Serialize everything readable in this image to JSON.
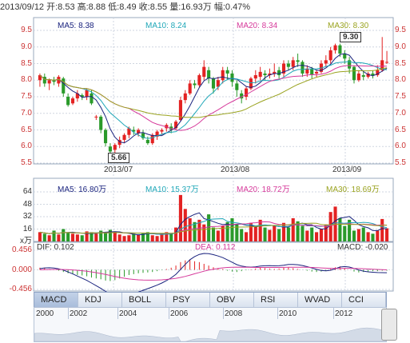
{
  "header": {
    "info": "2013/09/12 开:8.53  高:8.88  低:8.49  收:8.55  量:16.93万  幅:0.47%"
  },
  "price_panel": {
    "ma": [
      {
        "label": "MA5: 8.38",
        "color": "#1a237e"
      },
      {
        "label": "MA10: 8.24",
        "color": "#1fa7b8"
      },
      {
        "label": "MA20: 8.34",
        "color": "#d63a9b"
      },
      {
        "label": "MA30: 8.30",
        "color": "#9aa320"
      }
    ],
    "y_ticks": [
      "9.5",
      "9.0",
      "8.5",
      "8.0",
      "7.5",
      "7.0",
      "6.5",
      "6.0",
      "5.5"
    ],
    "x_ticks": [
      "2013/07",
      "2013/08",
      "2013/09"
    ],
    "high_marker": "9.30",
    "low_marker": "5.66"
  },
  "volume_panel": {
    "ma": [
      {
        "label": "MA5: 16.80万",
        "color": "#1a237e"
      },
      {
        "label": "MA10: 15.37万",
        "color": "#1fa7b8"
      },
      {
        "label": "MA20: 18.72万",
        "color": "#d63a9b"
      },
      {
        "label": "MA30: 18.69万",
        "color": "#9aa320"
      }
    ],
    "y_ticks": [
      "64",
      "48",
      "32",
      "16",
      "x万"
    ]
  },
  "macd_panel": {
    "dif": "DIF: 0.102",
    "dea": "DEA: 0.112",
    "macd": "MACD: -0.020",
    "y_ticks": [
      "0.456",
      "0.000",
      "-0.456"
    ]
  },
  "tabs": [
    "MACD",
    "KDJ",
    "BOLL",
    "PSY",
    "OBV",
    "RSI",
    "WVAD",
    "CCI"
  ],
  "active_tab": "MACD",
  "timeline_years": [
    "2000",
    "2002",
    "2004",
    "2006",
    "2008",
    "2010",
    "2012"
  ],
  "colors": {
    "up": "#e32222",
    "down": "#2a9a2a",
    "grid": "#cfd6e0"
  },
  "chart_data": [
    {
      "type": "candlestick",
      "title": "2013/09/12 开:8.53  高:8.88  低:8.49  收:8.55  量:16.93万  幅:0.47%",
      "x_ticks": [
        "2013/07",
        "2013/08",
        "2013/09"
      ],
      "ylim": [
        5.5,
        9.5
      ],
      "candles": [
        [
          8.0,
          8.15,
          7.8,
          8.2
        ],
        [
          8.1,
          7.9,
          7.8,
          8.2
        ],
        [
          7.9,
          8.0,
          7.7,
          8.05
        ],
        [
          8.0,
          7.95,
          7.85,
          8.1
        ],
        [
          7.9,
          8.1,
          7.8,
          8.15
        ],
        [
          8.05,
          7.6,
          7.5,
          8.1
        ],
        [
          7.5,
          7.25,
          7.2,
          7.6
        ],
        [
          7.3,
          7.45,
          7.25,
          7.5
        ],
        [
          7.45,
          7.6,
          7.35,
          7.7
        ],
        [
          7.55,
          7.5,
          7.4,
          7.6
        ],
        [
          7.5,
          7.7,
          7.4,
          7.75
        ],
        [
          7.6,
          7.3,
          7.25,
          7.7
        ],
        [
          6.9,
          6.9,
          6.8,
          6.95
        ],
        [
          6.9,
          6.5,
          6.4,
          6.95
        ],
        [
          6.5,
          6.1,
          6.0,
          6.55
        ],
        [
          6.0,
          5.85,
          5.66,
          6.1
        ],
        [
          5.9,
          6.05,
          5.8,
          6.1
        ],
        [
          6.05,
          6.2,
          5.95,
          6.3
        ],
        [
          6.2,
          6.35,
          6.1,
          6.4
        ],
        [
          6.35,
          6.55,
          6.25,
          6.6
        ],
        [
          6.5,
          6.45,
          6.35,
          6.6
        ],
        [
          6.4,
          6.5,
          6.3,
          6.55
        ],
        [
          6.4,
          6.25,
          6.2,
          6.5
        ],
        [
          6.2,
          6.1,
          6.05,
          6.3
        ],
        [
          6.1,
          6.35,
          6.05,
          6.4
        ],
        [
          6.3,
          6.45,
          6.2,
          6.5
        ],
        [
          6.45,
          6.5,
          6.35,
          6.55
        ],
        [
          6.55,
          6.65,
          6.45,
          6.7
        ],
        [
          6.6,
          6.5,
          6.4,
          6.7
        ],
        [
          6.55,
          6.75,
          6.5,
          6.8
        ],
        [
          6.8,
          7.4,
          6.75,
          7.5
        ],
        [
          7.4,
          7.6,
          7.3,
          7.7
        ],
        [
          7.6,
          7.9,
          7.55,
          8.0
        ],
        [
          7.9,
          7.85,
          7.75,
          8.0
        ],
        [
          7.85,
          8.15,
          7.8,
          8.2
        ],
        [
          8.1,
          8.4,
          8.0,
          8.6
        ],
        [
          8.3,
          8.05,
          7.9,
          8.4
        ],
        [
          8.05,
          7.75,
          7.6,
          8.1
        ],
        [
          7.8,
          8.0,
          7.7,
          8.1
        ],
        [
          8.0,
          8.3,
          7.9,
          8.4
        ],
        [
          8.3,
          8.2,
          8.0,
          8.4
        ],
        [
          8.2,
          7.95,
          7.8,
          8.3
        ],
        [
          7.9,
          7.7,
          7.5,
          8.0
        ],
        [
          7.6,
          7.45,
          7.3,
          7.7
        ],
        [
          7.5,
          7.75,
          7.4,
          7.8
        ],
        [
          7.75,
          8.05,
          7.7,
          8.1
        ],
        [
          8.05,
          8.15,
          7.9,
          8.3
        ],
        [
          8.1,
          8.25,
          8.0,
          8.4
        ],
        [
          8.2,
          8.15,
          8.0,
          8.3
        ],
        [
          8.15,
          8.2,
          8.05,
          8.35
        ],
        [
          8.2,
          8.25,
          8.1,
          8.5
        ],
        [
          8.3,
          8.15,
          8.05,
          8.4
        ],
        [
          8.2,
          8.5,
          8.1,
          8.6
        ],
        [
          8.5,
          8.4,
          8.3,
          8.6
        ],
        [
          8.4,
          8.6,
          8.3,
          8.7
        ],
        [
          8.6,
          8.55,
          8.4,
          8.8
        ],
        [
          8.55,
          8.2,
          8.1,
          8.6
        ],
        [
          8.2,
          8.35,
          8.1,
          8.45
        ],
        [
          8.35,
          8.15,
          8.05,
          8.4
        ],
        [
          8.2,
          8.25,
          8.1,
          8.3
        ],
        [
          8.25,
          8.5,
          8.2,
          8.6
        ],
        [
          8.5,
          8.6,
          8.4,
          8.75
        ],
        [
          8.6,
          8.9,
          8.5,
          9.0
        ],
        [
          8.9,
          9.05,
          8.8,
          9.1
        ],
        [
          9.05,
          8.8,
          8.7,
          9.1
        ],
        [
          8.8,
          8.65,
          8.5,
          8.9
        ],
        [
          8.6,
          8.35,
          8.2,
          8.7
        ],
        [
          8.4,
          8.0,
          7.9,
          8.45
        ],
        [
          8.0,
          8.2,
          7.95,
          8.3
        ],
        [
          8.15,
          8.1,
          8.0,
          8.3
        ],
        [
          8.1,
          8.2,
          8.05,
          8.25
        ],
        [
          8.2,
          8.15,
          8.05,
          8.3
        ],
        [
          8.15,
          8.3,
          8.1,
          8.45
        ],
        [
          8.3,
          8.6,
          8.25,
          9.3
        ],
        [
          8.53,
          8.55,
          8.49,
          8.88
        ]
      ]
    },
    {
      "type": "bar",
      "title": "volume",
      "ylim": [
        0,
        64
      ],
      "values": [
        12,
        10,
        8,
        14,
        9,
        16,
        11,
        10,
        9,
        8,
        13,
        12,
        10,
        14,
        11,
        15,
        13,
        9,
        7,
        8,
        10,
        9,
        11,
        12,
        8,
        7,
        10,
        12,
        11,
        18,
        60,
        42,
        30,
        25,
        28,
        22,
        35,
        18,
        14,
        20,
        25,
        30,
        22,
        16,
        12,
        24,
        20,
        28,
        18,
        15,
        20,
        16,
        24,
        18,
        30,
        26,
        20,
        14,
        18,
        12,
        16,
        22,
        38,
        45,
        30,
        20,
        28,
        14,
        16,
        18,
        12,
        10,
        14,
        29,
        17
      ]
    },
    {
      "type": "bar",
      "title": "MACD",
      "ylim": [
        -0.456,
        0.456
      ],
      "values": [
        0.05,
        0.04,
        0.02,
        0.0,
        -0.02,
        -0.05,
        -0.08,
        -0.1,
        -0.12,
        -0.13,
        -0.15,
        -0.18,
        -0.2,
        -0.22,
        -0.25,
        -0.26,
        -0.24,
        -0.2,
        -0.16,
        -0.12,
        -0.1,
        -0.08,
        -0.07,
        -0.06,
        -0.05,
        -0.03,
        -0.01,
        0.02,
        0.05,
        0.1,
        0.18,
        0.22,
        0.24,
        0.2,
        0.18,
        0.14,
        0.1,
        0.06,
        0.04,
        0.02,
        -0.02,
        -0.04,
        -0.05,
        -0.03,
        -0.01,
        0.01,
        0.03,
        0.05,
        0.04,
        0.03,
        0.02,
        0.03,
        0.05,
        0.06,
        0.04,
        0.02,
        0.0,
        -0.02,
        -0.04,
        -0.05,
        -0.04,
        -0.02,
        0.02,
        0.06,
        0.08,
        0.04,
        0.0,
        -0.04,
        -0.06,
        -0.05,
        -0.04,
        -0.03,
        -0.03,
        -0.02,
        -0.02
      ]
    }
  ]
}
